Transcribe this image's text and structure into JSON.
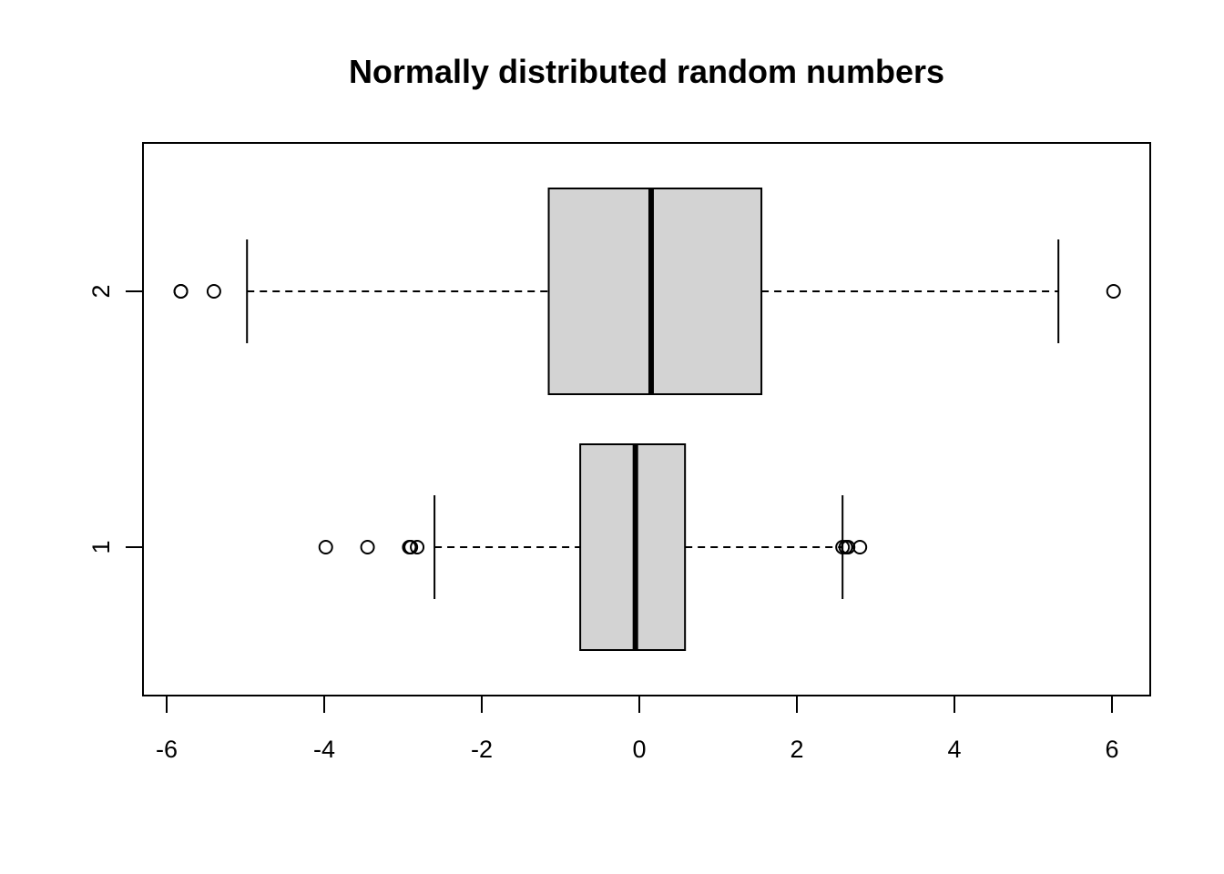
{
  "chart_data": {
    "type": "boxplot",
    "orientation": "horizontal",
    "title": "Normally distributed random numbers",
    "xlabel": "",
    "ylabel": "",
    "xlim": [
      -6.3,
      6.5
    ],
    "x_ticks": [
      -6,
      -4,
      -2,
      0,
      2,
      4,
      6
    ],
    "x_tick_labels": [
      "-6",
      "-4",
      "-2",
      "0",
      "2",
      "4",
      "6"
    ],
    "categories": [
      "1",
      "2"
    ],
    "box_fill": "#d3d3d3",
    "line_color": "#000000",
    "grid": false,
    "boxes": [
      {
        "name": "1",
        "whisker_low": -2.6,
        "q1": -0.75,
        "median": -0.05,
        "q3": 0.58,
        "whisker_high": 2.58,
        "outliers": [
          -3.98,
          -3.45,
          -2.92,
          -2.9,
          -2.82,
          2.58,
          2.62,
          2.65,
          2.8
        ]
      },
      {
        "name": "2",
        "whisker_low": -4.98,
        "q1": -1.15,
        "median": 0.15,
        "q3": 1.55,
        "whisker_high": 5.32,
        "outliers": [
          -5.82,
          -5.82,
          -5.4,
          6.02
        ]
      }
    ]
  }
}
